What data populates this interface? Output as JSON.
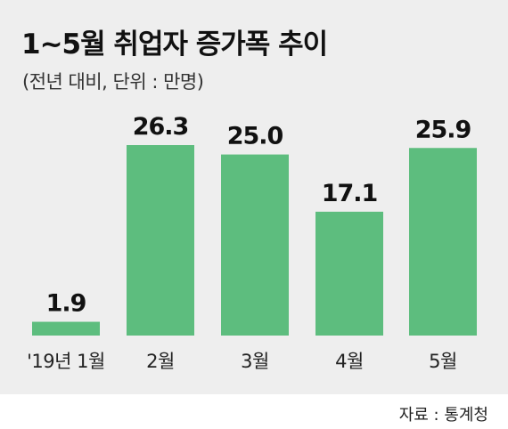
{
  "header": {
    "title": "1~5월 취업자 증가폭 추이",
    "subtitle": "(전년 대비, 단위 : 만명)"
  },
  "footer": {
    "source": "자료 : 통계청"
  },
  "colors": {
    "bar": "#5dbd7e",
    "panel": "#eeeeee",
    "text": "#111111"
  },
  "chart_data": {
    "type": "bar",
    "categories": [
      "'19년 1월",
      "2월",
      "3월",
      "4월",
      "5월"
    ],
    "values": [
      1.9,
      26.3,
      25.0,
      17.1,
      25.9
    ],
    "value_labels": [
      "1.9",
      "26.3",
      "25.0",
      "17.1",
      "25.9"
    ],
    "title": "1~5월 취업자 증가폭 추이",
    "subtitle": "(전년 대비, 단위 : 만명)",
    "xlabel": "",
    "ylabel": "",
    "ylim": [
      0,
      26.3
    ],
    "grid": false,
    "legend": "none"
  }
}
